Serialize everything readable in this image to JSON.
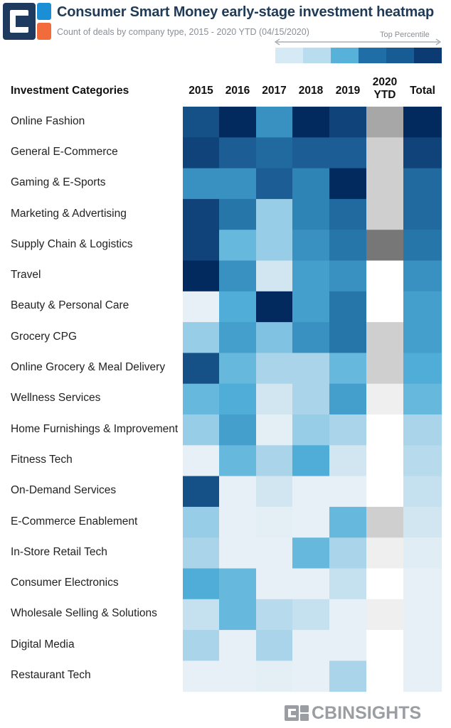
{
  "header": {
    "title": "Consumer Smart Money early-stage investment heatmap",
    "subtitle": "Count of deals by company type, 2015 - 2020 YTD (04/15/2020)",
    "logo_icon": "cb-insights-logo-icon",
    "logo_colors": {
      "navy": "#1e3a5f",
      "blue": "#1a8fd6",
      "orange": "#f26b3a"
    }
  },
  "legend": {
    "label": "Top Percentile",
    "colors": [
      "#d6eaf5",
      "#b9ddef",
      "#58b1d9",
      "#1f6ea7",
      "#185c95",
      "#0c3b73"
    ]
  },
  "chart_data": {
    "type": "heatmap",
    "row_header": "Investment Categories",
    "columns": [
      "2015",
      "2016",
      "2017",
      "2018",
      "2019",
      "2020 YTD",
      "Total"
    ],
    "rows": [
      "Online Fashion",
      "General E-Commerce",
      "Gaming & E-Sports",
      "Marketing & Advertising",
      "Supply Chain & Logistics",
      "Travel",
      "Beauty & Personal Care",
      "Grocery CPG",
      "Online Grocery & Meal Delivery",
      "Wellness Services",
      "Home Furnishings & Improvement",
      "Fitness Tech",
      "On-Demand Services",
      "E-Commerce Enablement",
      "In-Store Retail Tech",
      "Consumer Electronics",
      "Wholesale Selling & Solutions",
      "Digital Media",
      "Restaurant Tech"
    ],
    "percentile_levels": [
      [
        0.85,
        1.0,
        0.6,
        1.0,
        0.9,
        0.55,
        1.0
      ],
      [
        0.9,
        0.8,
        0.75,
        0.8,
        0.8,
        0.3,
        0.9
      ],
      [
        0.6,
        0.6,
        0.8,
        0.65,
        1.0,
        0.3,
        0.75
      ],
      [
        0.9,
        0.7,
        0.35,
        0.65,
        0.75,
        0.3,
        0.75
      ],
      [
        0.9,
        0.45,
        0.35,
        0.6,
        0.7,
        0.85,
        0.7
      ],
      [
        1.0,
        0.6,
        0.15,
        0.55,
        0.6,
        0.0,
        0.6
      ],
      [
        0.05,
        0.5,
        1.0,
        0.55,
        0.7,
        0.0,
        0.55
      ],
      [
        0.35,
        0.55,
        0.4,
        0.6,
        0.7,
        0.3,
        0.55
      ],
      [
        0.85,
        0.45,
        0.3,
        0.3,
        0.45,
        0.3,
        0.5
      ],
      [
        0.45,
        0.5,
        0.15,
        0.3,
        0.55,
        0.1,
        0.45
      ],
      [
        0.35,
        0.55,
        0.07,
        0.35,
        0.3,
        0.0,
        0.3
      ],
      [
        0.05,
        0.45,
        0.3,
        0.5,
        0.15,
        0.0,
        0.25
      ],
      [
        0.85,
        0.05,
        0.15,
        0.05,
        0.05,
        0.0,
        0.2
      ],
      [
        0.35,
        0.05,
        0.07,
        0.05,
        0.45,
        0.3,
        0.15
      ],
      [
        0.3,
        0.05,
        0.05,
        0.45,
        0.3,
        0.1,
        0.08
      ],
      [
        0.5,
        0.45,
        0.05,
        0.05,
        0.2,
        0.0,
        0.05
      ],
      [
        0.2,
        0.45,
        0.25,
        0.2,
        0.05,
        0.1,
        0.05
      ],
      [
        0.3,
        0.05,
        0.3,
        0.05,
        0.05,
        0.0,
        0.05
      ],
      [
        0.05,
        0.05,
        0.07,
        0.05,
        0.3,
        0.0,
        0.05
      ]
    ],
    "ytd_gray_levels": [
      0.55,
      0.3,
      0.3,
      0.3,
      0.85,
      0.0,
      0.0,
      0.3,
      0.3,
      0.1,
      0.0,
      0.0,
      0.0,
      0.3,
      0.1,
      0.0,
      0.1,
      0.0,
      0.0
    ],
    "color_scale": {
      "low": "#f1f5f8",
      "high": "#022a5e",
      "gray_low": "#ffffff",
      "gray_high": "#5f5f5f"
    },
    "legend_placement": "top-right",
    "grid": false
  },
  "brand": {
    "text": "CBINSIGHTS",
    "icon": "cb-insights-mark-icon"
  }
}
